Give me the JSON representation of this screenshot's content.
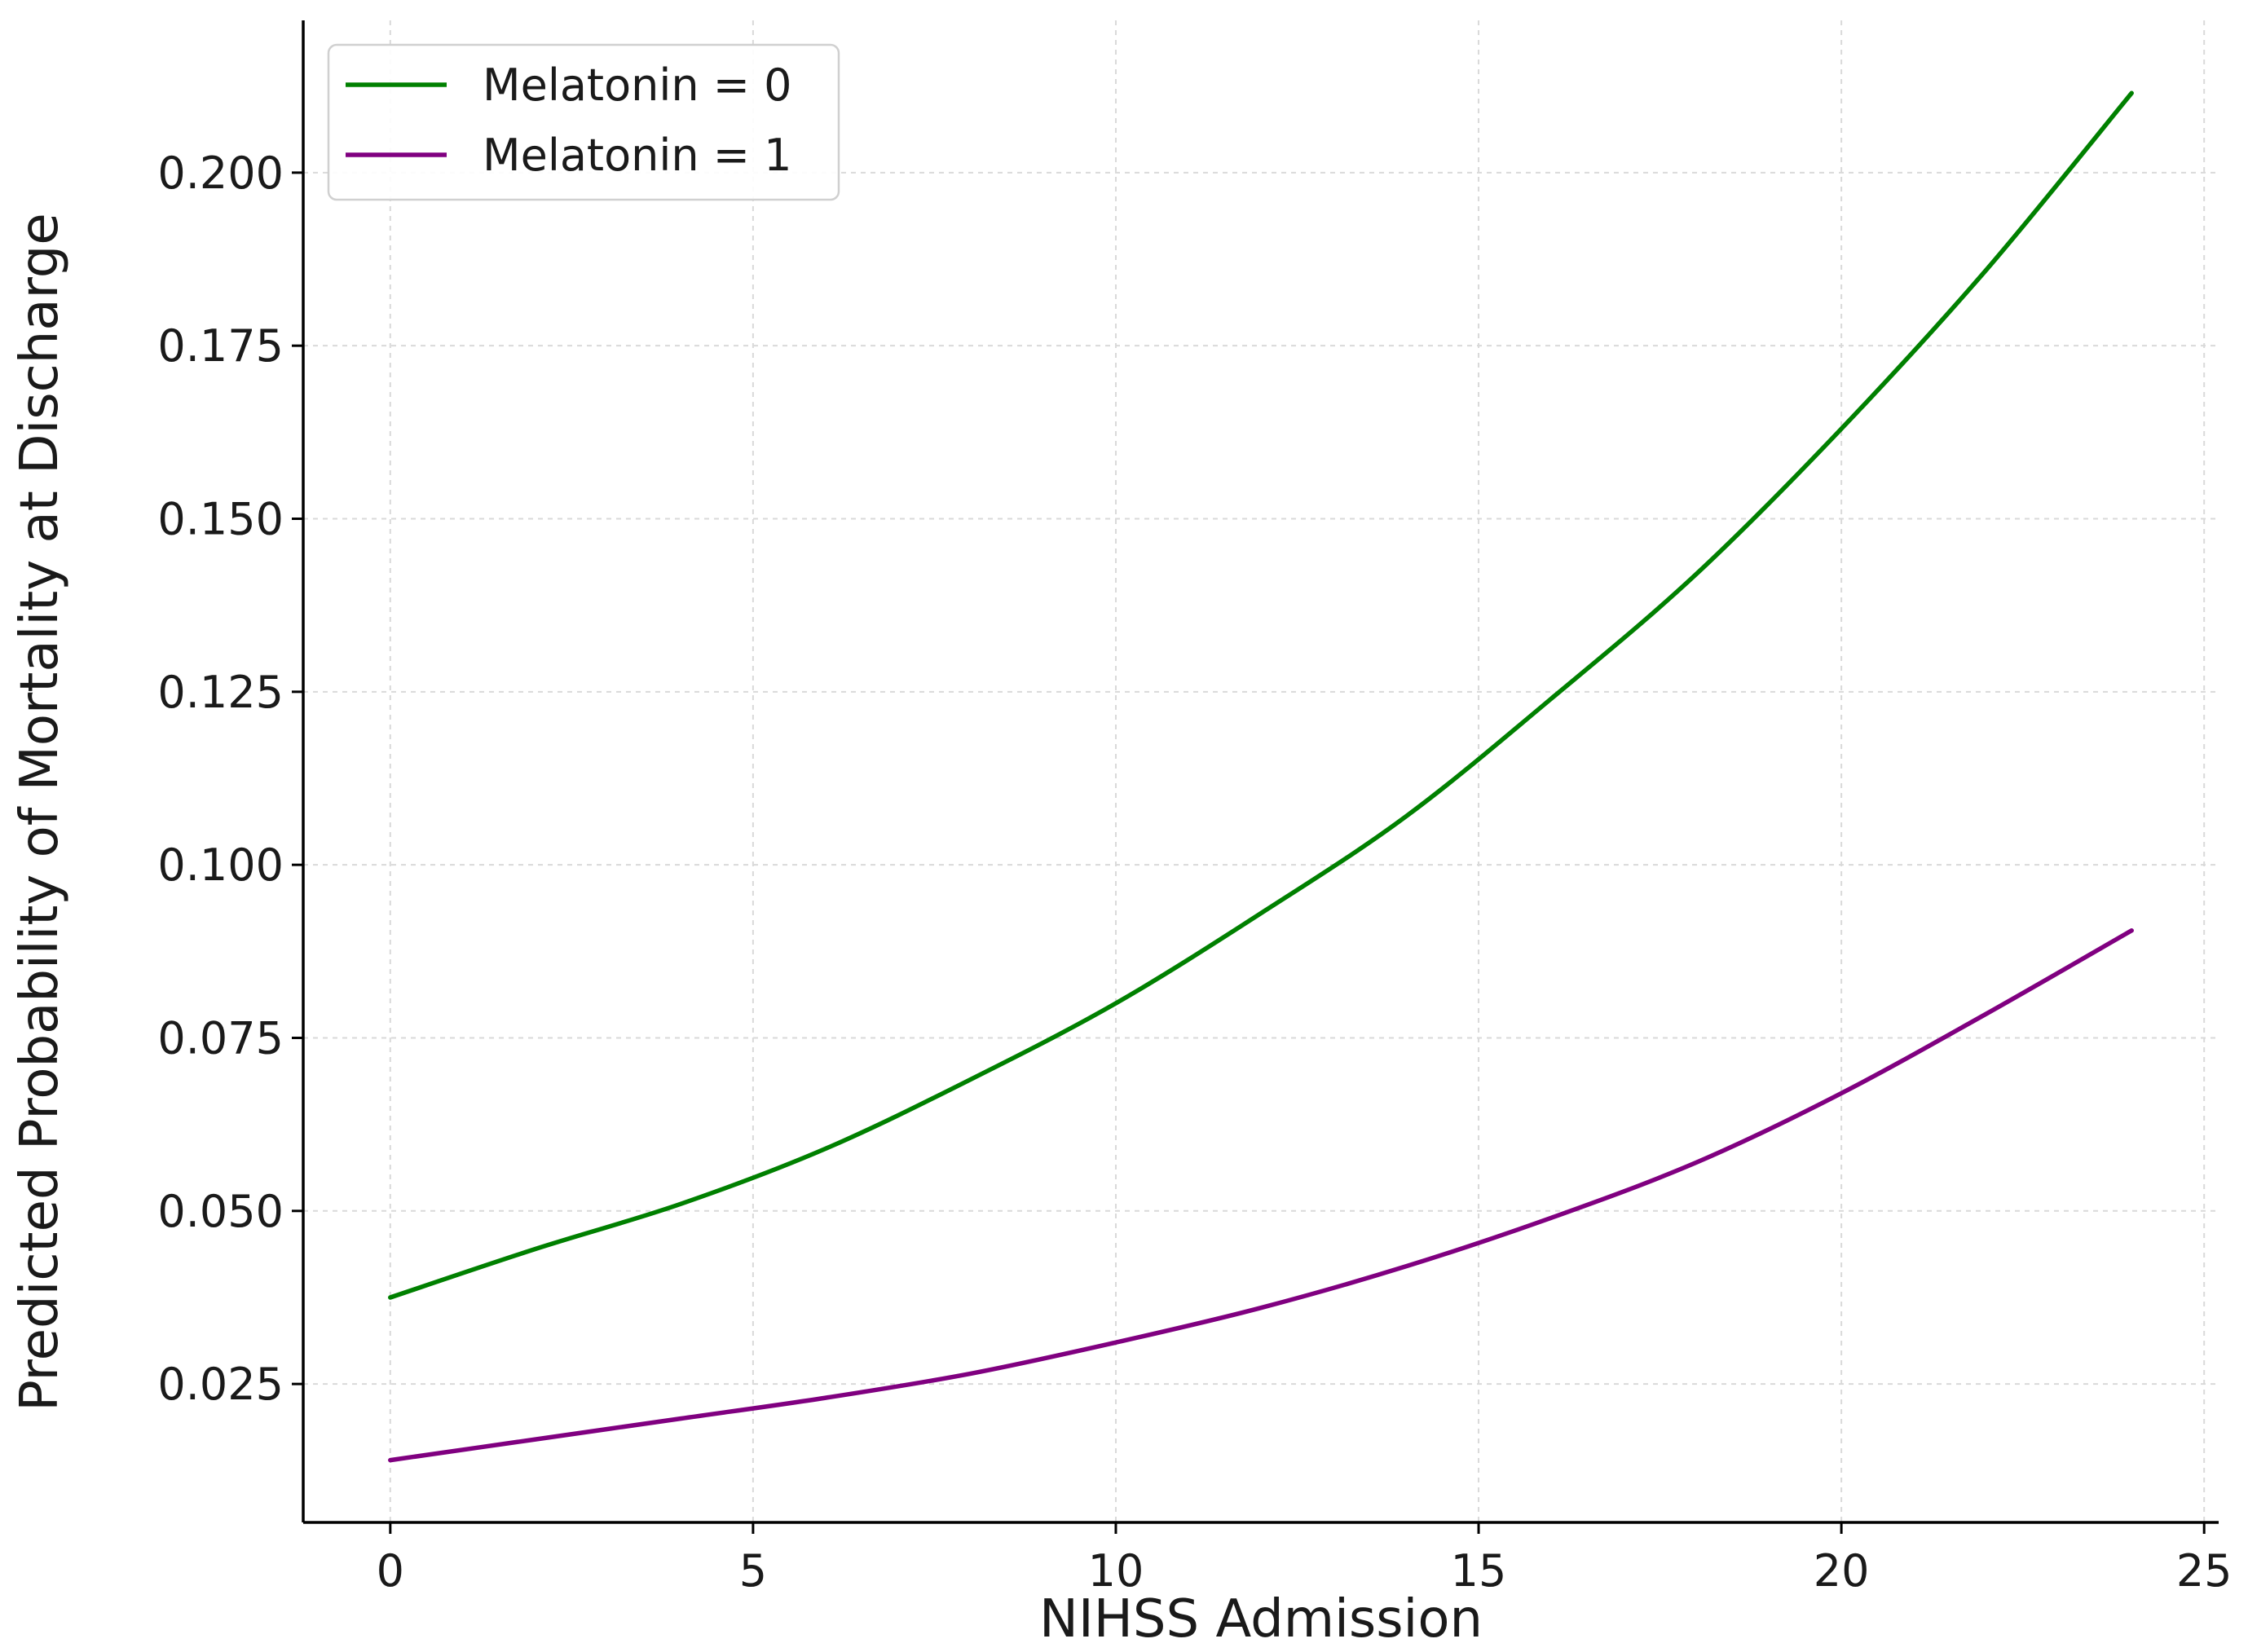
{
  "chart_data": {
    "type": "line",
    "title": "",
    "xlabel": "NIHSS Admission",
    "ylabel": "Predicted Probability of Mortality at Discharge",
    "xlim": [
      -1.2,
      25.2
    ],
    "ylim": [
      0.005,
      0.222
    ],
    "xticks": [
      0,
      5,
      10,
      15,
      20,
      25
    ],
    "xtick_labels": [
      "0",
      "5",
      "10",
      "15",
      "20",
      "25"
    ],
    "yticks": [
      0.025,
      0.05,
      0.075,
      0.1,
      0.125,
      0.15,
      0.175,
      0.2
    ],
    "ytick_labels": [
      "0.025",
      "0.050",
      "0.075",
      "0.100",
      "0.125",
      "0.150",
      "0.175",
      "0.200"
    ],
    "grid": true,
    "legend_position": "top-left",
    "x": [
      0,
      2,
      4,
      6,
      8,
      10,
      12,
      14,
      16,
      18,
      20,
      22,
      24
    ],
    "series": [
      {
        "name": "Melatonin = 0",
        "color": "#008000",
        "values": [
          0.0375,
          0.0445,
          0.051,
          0.059,
          0.069,
          0.08,
          0.093,
          0.107,
          0.124,
          0.142,
          0.163,
          0.186,
          0.2115
        ]
      },
      {
        "name": "Melatonin = 1",
        "color": "#800080",
        "values": [
          0.014,
          0.017,
          0.02,
          0.023,
          0.0265,
          0.031,
          0.036,
          0.042,
          0.049,
          0.057,
          0.067,
          0.0785,
          0.0905
        ]
      }
    ]
  }
}
